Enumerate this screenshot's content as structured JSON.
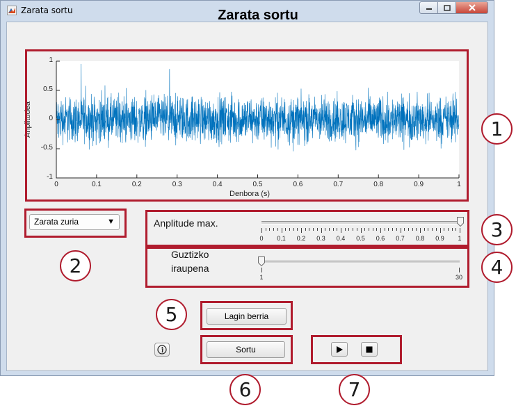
{
  "window": {
    "title": "Zarata sortu",
    "heading": "Zarata sortu"
  },
  "chart_data": {
    "type": "line",
    "title": "",
    "xlabel": "Denbora (s)",
    "ylabel": "Anplitudea",
    "xlim": [
      0,
      1
    ],
    "ylim": [
      -1,
      1
    ],
    "x_ticks": [
      "0",
      "0.1",
      "0.2",
      "0.3",
      "0.4",
      "0.5",
      "0.6",
      "0.7",
      "0.8",
      "0.9",
      "1"
    ],
    "y_ticks": [
      "1",
      "0.5",
      "0",
      "-0.5",
      "-1"
    ],
    "series": [
      {
        "description": "white noise signal spanning approximately -1 to 1 over 0 to 1 s",
        "color": "#0072bd",
        "typical_range": [
          -0.5,
          0.5
        ],
        "peak_range": [
          -1,
          1
        ]
      }
    ],
    "grid": false
  },
  "controls": {
    "noise_type_selected": "Zarata zuria",
    "amplitude_label": "Anplitude max.",
    "amplitude_value": 1,
    "amplitude_min": 0,
    "amplitude_max": 1,
    "amplitude_ticks": [
      "0",
      "0.1",
      "0.2",
      "0.3",
      "0.4",
      "0.5",
      "0.6",
      "0.7",
      "0.8",
      "0.9",
      "1"
    ],
    "duration_label_line1": "Guztizko",
    "duration_label_line2": "iraupena",
    "duration_value": 1,
    "duration_min": 1,
    "duration_max": 30,
    "duration_ticks": [
      "1",
      "30"
    ],
    "new_sample_button": "Lagin berria",
    "generate_button": "Sortu",
    "info_icon": "info-icon",
    "play_icon": "play-icon",
    "stop_icon": "stop-icon"
  },
  "annotations": {
    "color": "#b01c2e",
    "callouts": [
      "1",
      "2",
      "3",
      "4",
      "5",
      "6",
      "7"
    ]
  }
}
